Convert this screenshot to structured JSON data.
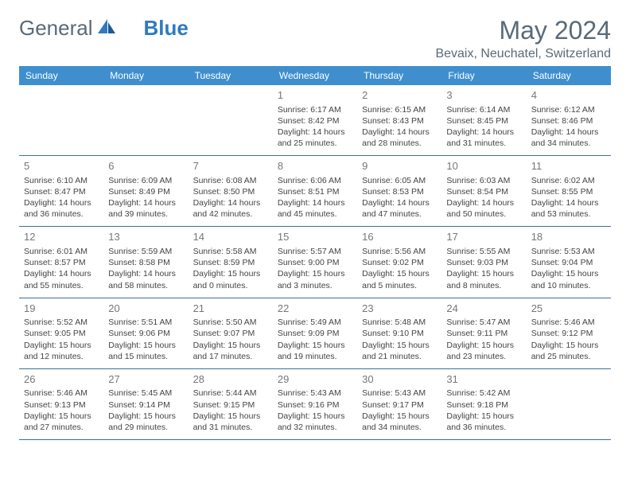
{
  "brand": {
    "part1": "General",
    "part2": "Blue"
  },
  "title": "May 2024",
  "location": "Bevaix, Neuchatel, Switzerland",
  "colors": {
    "header_bg": "#3f8fce",
    "header_text": "#ffffff",
    "cell_border": "#3f6e9a",
    "text": "#444444",
    "title_color": "#5a6a78",
    "logo_gray": "#5a6a78",
    "logo_blue": "#2f7bbf"
  },
  "weekdays": [
    "Sunday",
    "Monday",
    "Tuesday",
    "Wednesday",
    "Thursday",
    "Friday",
    "Saturday"
  ],
  "weeks": [
    [
      null,
      null,
      null,
      {
        "n": "1",
        "sr": "6:17 AM",
        "ss": "8:42 PM",
        "dl": "14 hours and 25 minutes."
      },
      {
        "n": "2",
        "sr": "6:15 AM",
        "ss": "8:43 PM",
        "dl": "14 hours and 28 minutes."
      },
      {
        "n": "3",
        "sr": "6:14 AM",
        "ss": "8:45 PM",
        "dl": "14 hours and 31 minutes."
      },
      {
        "n": "4",
        "sr": "6:12 AM",
        "ss": "8:46 PM",
        "dl": "14 hours and 34 minutes."
      }
    ],
    [
      {
        "n": "5",
        "sr": "6:10 AM",
        "ss": "8:47 PM",
        "dl": "14 hours and 36 minutes."
      },
      {
        "n": "6",
        "sr": "6:09 AM",
        "ss": "8:49 PM",
        "dl": "14 hours and 39 minutes."
      },
      {
        "n": "7",
        "sr": "6:08 AM",
        "ss": "8:50 PM",
        "dl": "14 hours and 42 minutes."
      },
      {
        "n": "8",
        "sr": "6:06 AM",
        "ss": "8:51 PM",
        "dl": "14 hours and 45 minutes."
      },
      {
        "n": "9",
        "sr": "6:05 AM",
        "ss": "8:53 PM",
        "dl": "14 hours and 47 minutes."
      },
      {
        "n": "10",
        "sr": "6:03 AM",
        "ss": "8:54 PM",
        "dl": "14 hours and 50 minutes."
      },
      {
        "n": "11",
        "sr": "6:02 AM",
        "ss": "8:55 PM",
        "dl": "14 hours and 53 minutes."
      }
    ],
    [
      {
        "n": "12",
        "sr": "6:01 AM",
        "ss": "8:57 PM",
        "dl": "14 hours and 55 minutes."
      },
      {
        "n": "13",
        "sr": "5:59 AM",
        "ss": "8:58 PM",
        "dl": "14 hours and 58 minutes."
      },
      {
        "n": "14",
        "sr": "5:58 AM",
        "ss": "8:59 PM",
        "dl": "15 hours and 0 minutes."
      },
      {
        "n": "15",
        "sr": "5:57 AM",
        "ss": "9:00 PM",
        "dl": "15 hours and 3 minutes."
      },
      {
        "n": "16",
        "sr": "5:56 AM",
        "ss": "9:02 PM",
        "dl": "15 hours and 5 minutes."
      },
      {
        "n": "17",
        "sr": "5:55 AM",
        "ss": "9:03 PM",
        "dl": "15 hours and 8 minutes."
      },
      {
        "n": "18",
        "sr": "5:53 AM",
        "ss": "9:04 PM",
        "dl": "15 hours and 10 minutes."
      }
    ],
    [
      {
        "n": "19",
        "sr": "5:52 AM",
        "ss": "9:05 PM",
        "dl": "15 hours and 12 minutes."
      },
      {
        "n": "20",
        "sr": "5:51 AM",
        "ss": "9:06 PM",
        "dl": "15 hours and 15 minutes."
      },
      {
        "n": "21",
        "sr": "5:50 AM",
        "ss": "9:07 PM",
        "dl": "15 hours and 17 minutes."
      },
      {
        "n": "22",
        "sr": "5:49 AM",
        "ss": "9:09 PM",
        "dl": "15 hours and 19 minutes."
      },
      {
        "n": "23",
        "sr": "5:48 AM",
        "ss": "9:10 PM",
        "dl": "15 hours and 21 minutes."
      },
      {
        "n": "24",
        "sr": "5:47 AM",
        "ss": "9:11 PM",
        "dl": "15 hours and 23 minutes."
      },
      {
        "n": "25",
        "sr": "5:46 AM",
        "ss": "9:12 PM",
        "dl": "15 hours and 25 minutes."
      }
    ],
    [
      {
        "n": "26",
        "sr": "5:46 AM",
        "ss": "9:13 PM",
        "dl": "15 hours and 27 minutes."
      },
      {
        "n": "27",
        "sr": "5:45 AM",
        "ss": "9:14 PM",
        "dl": "15 hours and 29 minutes."
      },
      {
        "n": "28",
        "sr": "5:44 AM",
        "ss": "9:15 PM",
        "dl": "15 hours and 31 minutes."
      },
      {
        "n": "29",
        "sr": "5:43 AM",
        "ss": "9:16 PM",
        "dl": "15 hours and 32 minutes."
      },
      {
        "n": "30",
        "sr": "5:43 AM",
        "ss": "9:17 PM",
        "dl": "15 hours and 34 minutes."
      },
      {
        "n": "31",
        "sr": "5:42 AM",
        "ss": "9:18 PM",
        "dl": "15 hours and 36 minutes."
      },
      null
    ]
  ],
  "labels": {
    "sunrise": "Sunrise: ",
    "sunset": "Sunset: ",
    "daylight": "Daylight: "
  }
}
